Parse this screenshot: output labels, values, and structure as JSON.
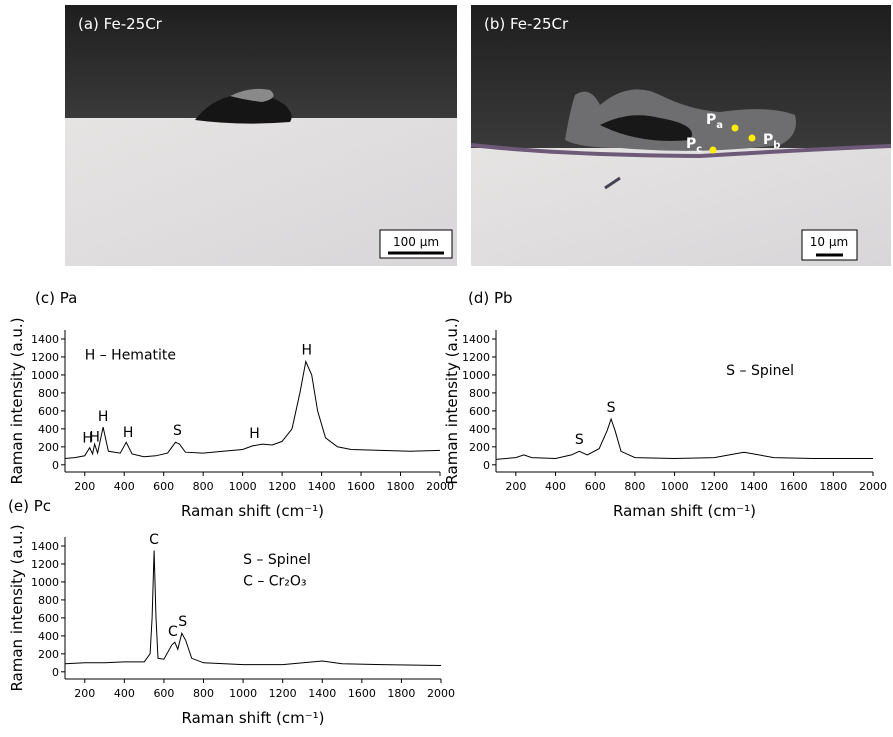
{
  "images": [
    {
      "label": "(a) Fe-25Cr",
      "scale_bar": "100 μm"
    },
    {
      "label": "(b) Fe-25Cr",
      "scale_bar": "10 μm",
      "points": [
        {
          "text": "P",
          "sub": "a"
        },
        {
          "text": "P",
          "sub": "b"
        },
        {
          "text": "P",
          "sub": "c"
        }
      ]
    }
  ],
  "chart_data": [
    {
      "type": "line",
      "title": "(c) Pa",
      "xlabel": "Raman shift (cm⁻¹)",
      "ylabel": "Raman intensity (a.u.)",
      "xlim": [
        100,
        2000
      ],
      "ylim": [
        -80,
        1500
      ],
      "xticks": [
        200,
        400,
        600,
        800,
        1000,
        1200,
        1400,
        1600,
        1800,
        2000
      ],
      "yticks": [
        0,
        200,
        400,
        600,
        800,
        1000,
        1200,
        1400
      ],
      "x": [
        100,
        150,
        200,
        225,
        240,
        250,
        265,
        293,
        320,
        380,
        410,
        440,
        500,
        560,
        620,
        660,
        680,
        710,
        800,
        900,
        1000,
        1050,
        1100,
        1150,
        1200,
        1250,
        1290,
        1320,
        1350,
        1380,
        1420,
        1480,
        1550,
        1700,
        1850,
        2000
      ],
      "values": [
        70,
        80,
        100,
        190,
        120,
        230,
        130,
        420,
        150,
        130,
        250,
        120,
        90,
        100,
        130,
        250,
        230,
        140,
        130,
        150,
        170,
        210,
        230,
        220,
        260,
        400,
        800,
        1150,
        1000,
        600,
        300,
        200,
        170,
        160,
        150,
        160
      ],
      "color": "#000000",
      "annotations": [
        {
          "text": "H",
          "x": 215,
          "y": 250
        },
        {
          "text": "H",
          "x": 250,
          "y": 260
        },
        {
          "text": "H",
          "x": 293,
          "y": 490
        },
        {
          "text": "H",
          "x": 420,
          "y": 310
        },
        {
          "text": "S",
          "x": 670,
          "y": 330
        },
        {
          "text": "H",
          "x": 1060,
          "y": 300
        },
        {
          "text": "H",
          "x": 1325,
          "y": 1230
        }
      ],
      "legend_texts": [
        {
          "text": "H – Hematite",
          "x": 200,
          "y": 1170
        }
      ]
    },
    {
      "type": "line",
      "title": "(d) Pb",
      "xlabel": "Raman shift (cm⁻¹)",
      "ylabel": "Raman intensity (a.u.)",
      "xlim": [
        100,
        2000
      ],
      "ylim": [
        -80,
        1500
      ],
      "xticks": [
        200,
        400,
        600,
        800,
        1000,
        1200,
        1400,
        1600,
        1800,
        2000
      ],
      "yticks": [
        0,
        200,
        400,
        600,
        800,
        1000,
        1200,
        1400
      ],
      "x": [
        100,
        200,
        240,
        280,
        400,
        480,
        520,
        560,
        620,
        660,
        680,
        700,
        730,
        800,
        1000,
        1200,
        1300,
        1350,
        1400,
        1500,
        1700,
        2000
      ],
      "values": [
        60,
        80,
        110,
        80,
        70,
        110,
        150,
        110,
        180,
        380,
        510,
        380,
        150,
        80,
        70,
        80,
        120,
        140,
        120,
        80,
        70,
        70
      ],
      "color": "#000000",
      "annotations": [
        {
          "text": "S",
          "x": 520,
          "y": 230
        },
        {
          "text": "S",
          "x": 680,
          "y": 590
        }
      ],
      "legend_texts": [
        {
          "text": "S – Spinel",
          "x": 1260,
          "y": 1000
        }
      ]
    },
    {
      "type": "line",
      "title": "(e) Pc",
      "xlabel": "Raman shift (cm⁻¹)",
      "ylabel": "Raman intensity (a.u.)",
      "xlim": [
        100,
        2000
      ],
      "ylim": [
        -80,
        1500
      ],
      "xticks": [
        200,
        400,
        600,
        800,
        1000,
        1200,
        1400,
        1600,
        1800,
        2000
      ],
      "yticks": [
        0,
        200,
        400,
        600,
        800,
        1000,
        1200,
        1400
      ],
      "x": [
        100,
        200,
        300,
        400,
        500,
        530,
        540,
        550,
        560,
        570,
        600,
        640,
        655,
        670,
        690,
        710,
        740,
        800,
        1000,
        1200,
        1400,
        1500,
        1700,
        2000
      ],
      "values": [
        90,
        100,
        100,
        110,
        110,
        200,
        600,
        1350,
        600,
        150,
        140,
        300,
        330,
        250,
        430,
        350,
        150,
        100,
        80,
        80,
        120,
        90,
        80,
        70
      ],
      "color": "#000000",
      "annotations": [
        {
          "text": "C",
          "x": 550,
          "y": 1420
        },
        {
          "text": "C",
          "x": 645,
          "y": 400
        },
        {
          "text": "S",
          "x": 695,
          "y": 510
        }
      ],
      "legend_texts": [
        {
          "text": "S – Spinel",
          "x": 1000,
          "y": 1200
        },
        {
          "text": "C – Cr₂O₃",
          "x": 1000,
          "y": 960
        }
      ]
    }
  ]
}
